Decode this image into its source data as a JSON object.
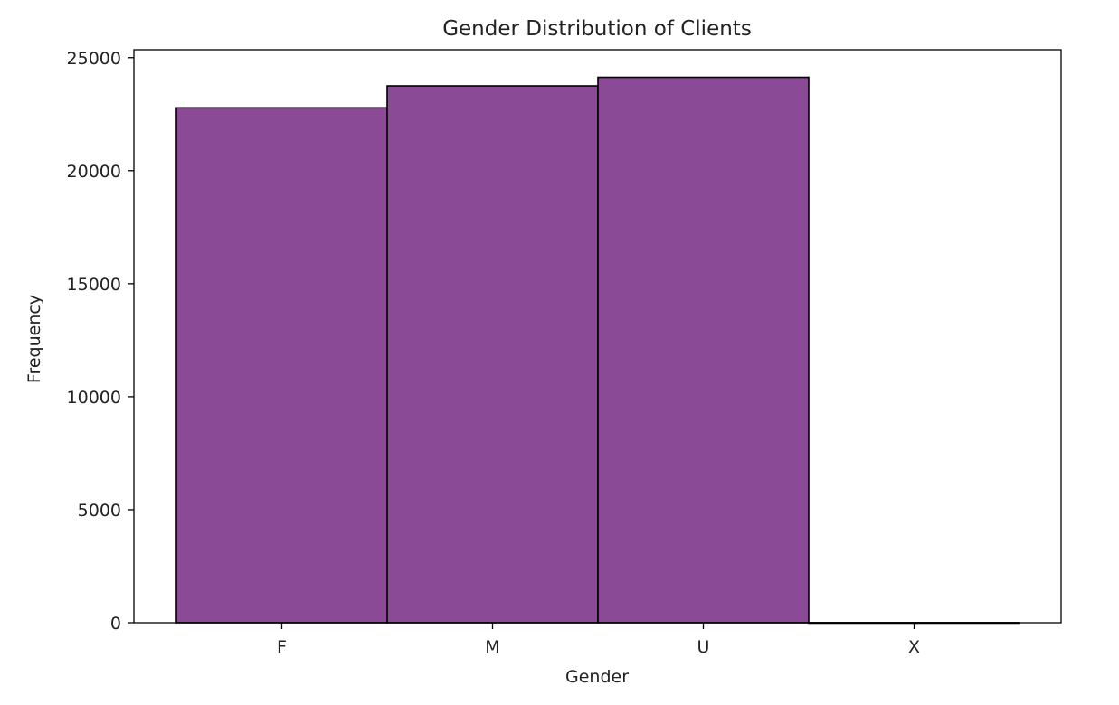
{
  "chart_data": {
    "type": "bar",
    "title": "Gender Distribution of Clients",
    "xlabel": "Gender",
    "ylabel": "Frequency",
    "categories": [
      "F",
      "M",
      "U",
      "X"
    ],
    "values": [
      22780,
      23750,
      24130,
      5
    ],
    "ylim": [
      0,
      25350
    ],
    "yticks": [
      0,
      5000,
      10000,
      15000,
      20000,
      25000
    ],
    "ytick_labels": [
      "0",
      "5000",
      "10000",
      "15000",
      "20000",
      "25000"
    ],
    "bar_color": "#8b4a96",
    "edge_color": "#000000",
    "grid": false,
    "legend": "none"
  }
}
